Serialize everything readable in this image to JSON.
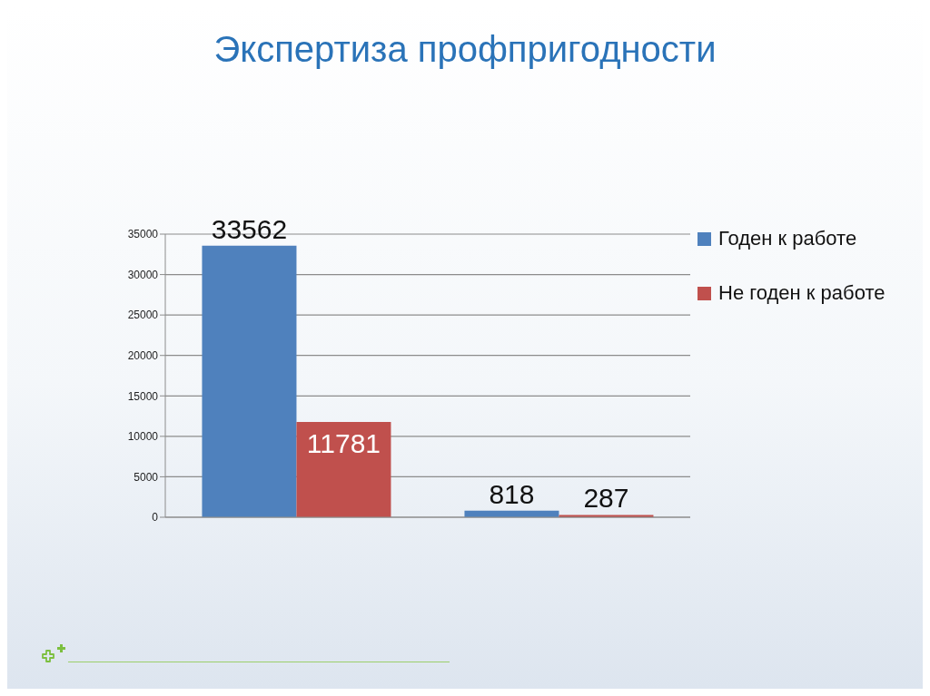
{
  "chart_data": {
    "type": "bar",
    "title": "Экспертиза профпригодности",
    "categories": [
      null,
      null
    ],
    "series": [
      {
        "name": "Годен к работе",
        "color": "#4f81bd",
        "values": [
          33562,
          818
        ]
      },
      {
        "name": "Не годен к работе",
        "color": "#c0504d",
        "values": [
          11781,
          287
        ]
      }
    ],
    "ylim": [
      0,
      35000
    ],
    "yticks": [
      0,
      5000,
      10000,
      15000,
      20000,
      25000,
      30000,
      35000
    ],
    "grid": "y",
    "legend": "right",
    "data_labels": true
  }
}
